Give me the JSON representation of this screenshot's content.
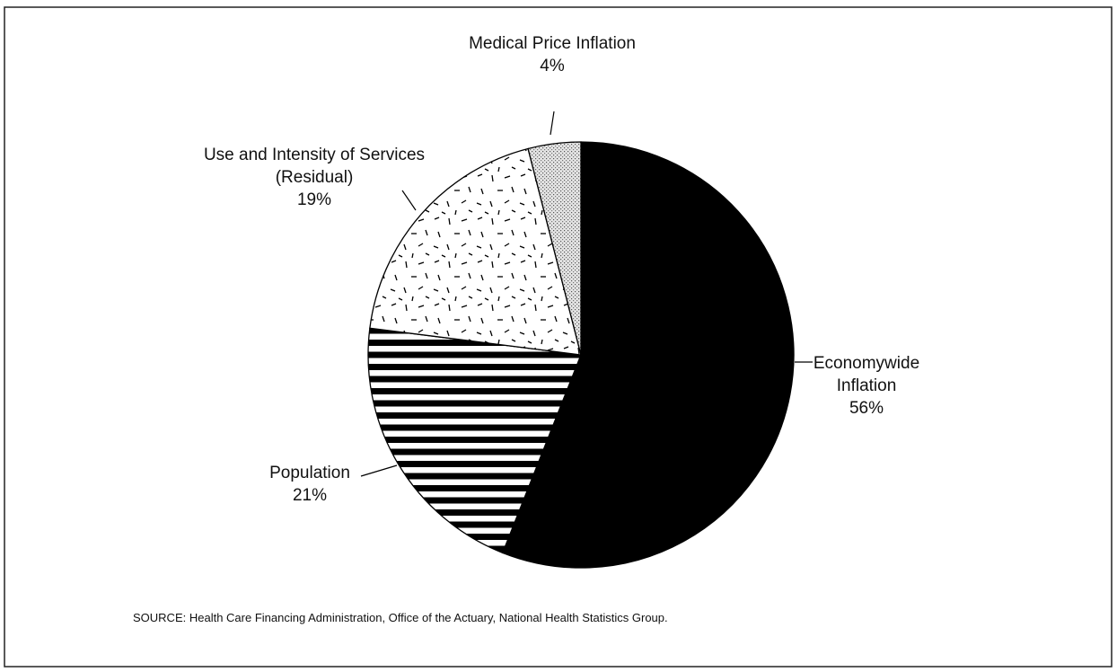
{
  "chart_data": {
    "type": "pie",
    "categories": [
      "Economywide Inflation",
      "Population",
      "Use and Intensity of Services (Residual)",
      "Medical Price Inflation"
    ],
    "values": [
      56,
      21,
      19,
      4
    ],
    "value_labels": [
      "56%",
      "21%",
      "19%",
      "4%"
    ],
    "source": "SOURCE: Health Care Financing Administration, Office of the Actuary, National Health Statistics Group."
  }
}
